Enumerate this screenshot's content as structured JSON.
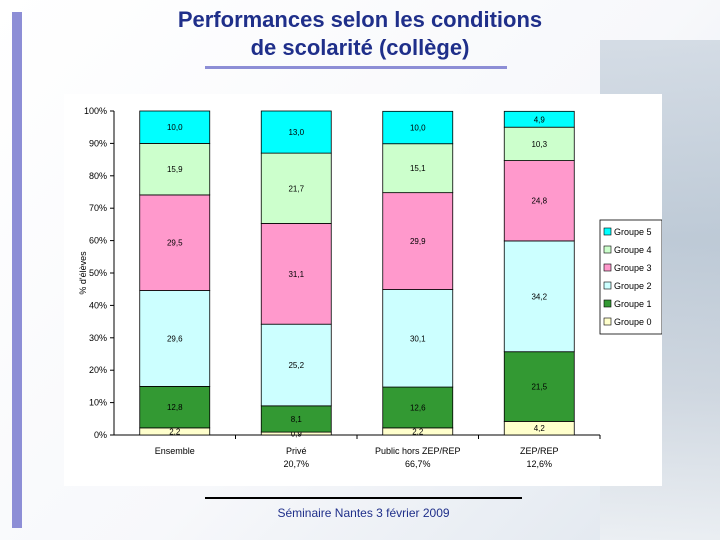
{
  "slide": {
    "title_line1": "Performances selon les conditions",
    "title_line2": "de scolarité (collège)",
    "footer": "Séminaire Nantes 3 février 2009"
  },
  "chart_data": {
    "type": "bar",
    "stacked": true,
    "percent_stacked": true,
    "ylabel": "% d'élèves",
    "ylim": [
      0,
      100
    ],
    "yticks": [
      "0%",
      "10%",
      "20%",
      "30%",
      "40%",
      "50%",
      "60%",
      "70%",
      "80%",
      "90%",
      "100%"
    ],
    "grid": false,
    "legend_position": "right",
    "categories": [
      {
        "label": "Ensemble",
        "sublabel": ""
      },
      {
        "label": "Privé",
        "sublabel": "20,7%"
      },
      {
        "label": "Public hors ZEP/REP",
        "sublabel": "66,7%"
      },
      {
        "label": "ZEP/REP",
        "sublabel": "12,6%"
      }
    ],
    "series": [
      {
        "name": "Groupe 0",
        "color": "#ffffcc",
        "values": [
          2.2,
          0.9,
          2.2,
          4.2
        ],
        "labels": [
          "2,2",
          "0,9",
          "2,2",
          "4,2"
        ]
      },
      {
        "name": "Groupe 1",
        "color": "#339933",
        "values": [
          12.8,
          8.1,
          12.6,
          21.5
        ],
        "labels": [
          "12,8",
          "8,1",
          "12,6",
          "21,5"
        ]
      },
      {
        "name": "Groupe 2",
        "color": "#ccffff",
        "values": [
          29.6,
          25.2,
          30.1,
          34.2
        ],
        "labels": [
          "29,6",
          "25,2",
          "30,1",
          "34,2"
        ]
      },
      {
        "name": "Groupe 3",
        "color": "#ff99cc",
        "values": [
          29.5,
          31.1,
          29.9,
          24.8
        ],
        "labels": [
          "29,5",
          "31,1",
          "29,9",
          "24,8"
        ]
      },
      {
        "name": "Groupe 4",
        "color": "#ccffcc",
        "values": [
          15.9,
          21.7,
          15.1,
          10.3
        ],
        "labels": [
          "15,9",
          "21,7",
          "15,1",
          "10,3"
        ]
      },
      {
        "name": "Groupe 5",
        "color": "#00ffff",
        "values": [
          10.0,
          13.0,
          10.0,
          4.9
        ],
        "labels": [
          "10,0",
          "13,0",
          "10,0",
          "4,9"
        ]
      }
    ],
    "legend_order": [
      "Groupe 5",
      "Groupe 4",
      "Groupe 3",
      "Groupe 2",
      "Groupe 1",
      "Groupe 0"
    ]
  }
}
